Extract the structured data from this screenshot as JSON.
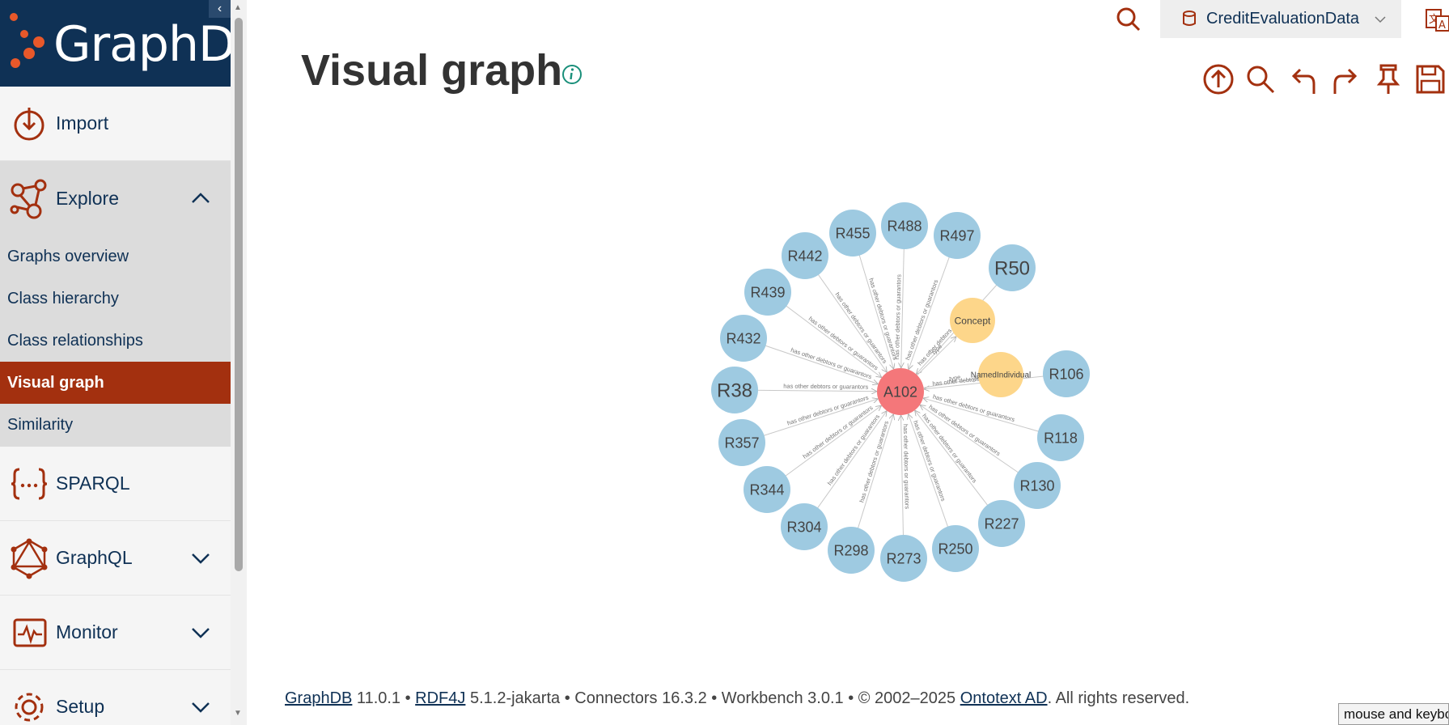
{
  "app": {
    "logo_text": "GraphDB"
  },
  "sidebar": {
    "collapse_icon": "chevron-left-icon",
    "items": [
      {
        "label": "Import",
        "icon": "import-icon"
      },
      {
        "label": "Explore",
        "icon": "explore-icon",
        "expanded": true
      },
      {
        "label": "SPARQL",
        "icon": "sparql-icon"
      },
      {
        "label": "GraphQL",
        "icon": "graphql-icon"
      },
      {
        "label": "Monitor",
        "icon": "monitor-icon"
      },
      {
        "label": "Setup",
        "icon": "setup-icon"
      }
    ],
    "explore_sub": [
      {
        "label": "Graphs overview",
        "active": false
      },
      {
        "label": "Class hierarchy",
        "active": false
      },
      {
        "label": "Class relationships",
        "active": false
      },
      {
        "label": "Visual graph",
        "active": true
      },
      {
        "label": "Similarity",
        "active": false
      }
    ]
  },
  "header": {
    "repository": "CreditEvaluationData",
    "icons": [
      "search-icon",
      "repository-icon",
      "language-icon"
    ]
  },
  "page": {
    "title": "Visual graph",
    "toolbar_icons": [
      "upload-icon",
      "search-icon",
      "undo-icon",
      "redo-icon",
      "pin-icon",
      "save-icon"
    ]
  },
  "graph": {
    "center": "A102",
    "edge_label": "has other debtors or guarantors",
    "type_edge_label": "type",
    "class_nodes": [
      "Concept",
      "NamedIndividual"
    ],
    "nodes": [
      "R455",
      "R488",
      "R497",
      "R50",
      "R442",
      "R439",
      "R432",
      "R38",
      "R357",
      "R344",
      "R304",
      "R298",
      "R273",
      "R250",
      "R227",
      "R130",
      "R118",
      "R106"
    ],
    "colors": {
      "instance": "#9ecae1",
      "center": "#f4777a",
      "class": "#fdd68a",
      "accent": "#a3300f",
      "navy": "#0f3155"
    }
  },
  "footer": {
    "graphdb_link": "GraphDB",
    "graphdb_version": " 11.0.1 • ",
    "rdf4j_link": "RDF4J",
    "rdf4j_version": " 5.1.2-jakarta • Connectors 16.3.2 • Workbench 3.0.1 • © 2002–2025 ",
    "ontotext_link": "Ontotext AD",
    "rights": ". All rights reserved."
  },
  "status_tip": "mouse and keyboard"
}
